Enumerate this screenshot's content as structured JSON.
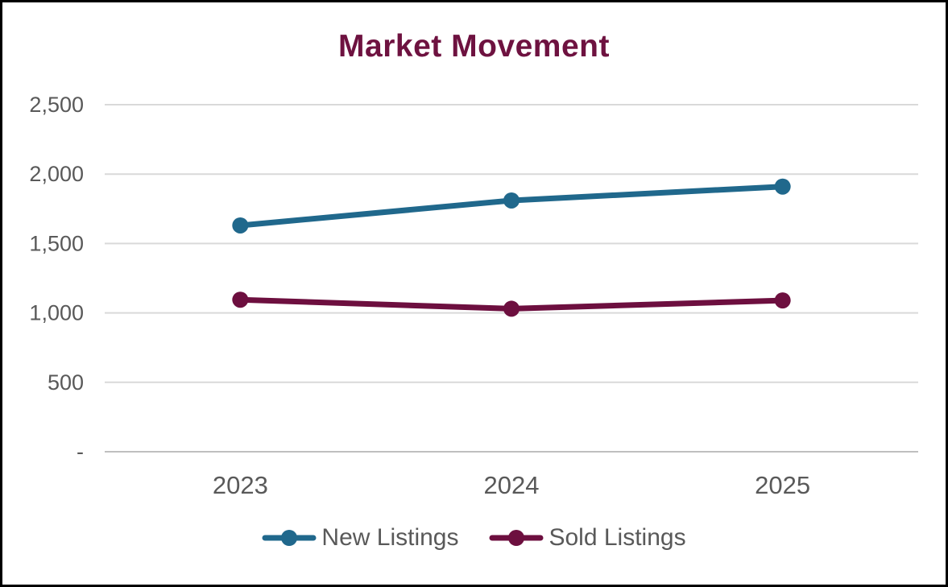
{
  "window": {
    "background_color": "#FFFFFF",
    "border_color": "#000000"
  },
  "chart_data": {
    "type": "line",
    "title": "Market Movement",
    "title_color": "#6E1240",
    "categories": [
      "2023",
      "2024",
      "2025"
    ],
    "series": [
      {
        "name": "New Listings",
        "color": "#20688C",
        "values": [
          1630,
          1810,
          1910
        ]
      },
      {
        "name": "Sold Listings",
        "color": "#6D0F3F",
        "values": [
          1095,
          1030,
          1090
        ]
      }
    ],
    "xlabel": "",
    "ylabel": "",
    "ylim": [
      0,
      2500
    ],
    "yticks": [
      {
        "value": 2500,
        "label": "2,500"
      },
      {
        "value": 2000,
        "label": "2,000"
      },
      {
        "value": 1500,
        "label": "1,500"
      },
      {
        "value": 1000,
        "label": "1,000"
      },
      {
        "value": 500,
        "label": "500"
      },
      {
        "value": 0,
        "label": "-"
      }
    ],
    "grid": true,
    "legend_position": "bottom",
    "axis_text_color": "#595959",
    "gridline_color": "#D9D9D9",
    "axis_line_color": "#BFBFBF"
  }
}
